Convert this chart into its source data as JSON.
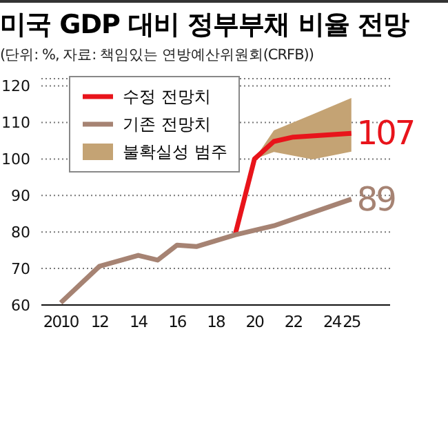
{
  "chart_data": {
    "type": "line",
    "title": "미국 GDP 대비 정부부채 비율 전망",
    "subtitle": "(단위: %, 자료: 책임있는 연방예산위원회(CRFB))",
    "xlim": [
      2009,
      2027
    ],
    "xticks": [
      {
        "value": 2010,
        "label": "2010"
      },
      {
        "value": 2012,
        "label": "12"
      },
      {
        "value": 2014,
        "label": "14"
      },
      {
        "value": 2016,
        "label": "16"
      },
      {
        "value": 2018,
        "label": "18"
      },
      {
        "value": 2020,
        "label": "20"
      },
      {
        "value": 2022,
        "label": "22"
      },
      {
        "value": 2024,
        "label": "24"
      },
      {
        "value": 2025,
        "label": "25"
      }
    ],
    "ylim": [
      60,
      122
    ],
    "yticks": [
      60,
      70,
      80,
      90,
      100,
      110,
      120
    ],
    "grid": "y",
    "legend": "top left",
    "marker": "none",
    "series": [
      {
        "name": "불확실성 범주",
        "type": "area",
        "color": "#c4a374",
        "x": [
          2020,
          2021,
          2023,
          2025
        ],
        "values": [
          null,
          null,
          null,
          null
        ],
        "lower": [
          100,
          101.9,
          99.9,
          102
        ],
        "upper": [
          100,
          107.8,
          112.2,
          116.7
        ]
      },
      {
        "name": "수정 전망치",
        "color": "#e8141b",
        "x": [
          2019,
          2020,
          2021,
          2022,
          2025
        ],
        "values": [
          79.2,
          100,
          104.8,
          106,
          107
        ],
        "value_labels": [
          null,
          null,
          null,
          null,
          "107"
        ]
      },
      {
        "name": "기존 전망치",
        "color": "#a68373",
        "x": [
          2010,
          2012,
          2014,
          2015,
          2016,
          2017,
          2019,
          2021,
          2025
        ],
        "values": [
          60.6,
          70.6,
          73.6,
          72.3,
          76.4,
          76,
          79.2,
          81.7,
          89
        ],
        "value_labels": [
          null,
          null,
          null,
          null,
          null,
          null,
          null,
          null,
          "89"
        ]
      }
    ]
  }
}
